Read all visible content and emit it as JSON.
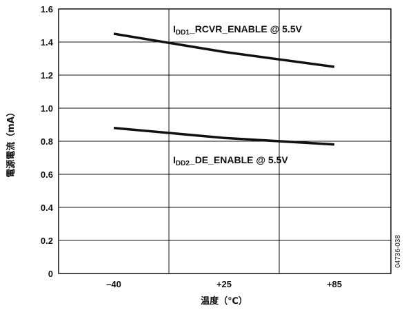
{
  "chart_data": {
    "type": "line",
    "xlabel": "温度（℃）",
    "ylabel": "電源電流（mA）",
    "categories": [
      "–40",
      "+25",
      "+85"
    ],
    "x": [
      -40,
      25,
      85
    ],
    "ylim": [
      0,
      1.6
    ],
    "yticks": [
      "0",
      "0.2",
      "0.4",
      "0.6",
      "0.8",
      "1.0",
      "1.2",
      "1.4",
      "1.6"
    ],
    "grid": true,
    "series": [
      {
        "name": "IDD1_RCVR_ENABLE @ 5.5V",
        "label_main": "I",
        "label_sub": "DD1",
        "label_rest": "_RCVR_ENABLE @ 5.5V",
        "values": [
          1.45,
          1.34,
          1.25
        ],
        "color": "#111111"
      },
      {
        "name": "IDD2_DE_ENABLE @ 5.5V",
        "label_main": "I",
        "label_sub": "DD2",
        "label_rest": "_DE_ENABLE @ 5.5V",
        "values": [
          0.88,
          0.82,
          0.78
        ],
        "color": "#111111"
      }
    ],
    "figure_code": "04736-038"
  }
}
